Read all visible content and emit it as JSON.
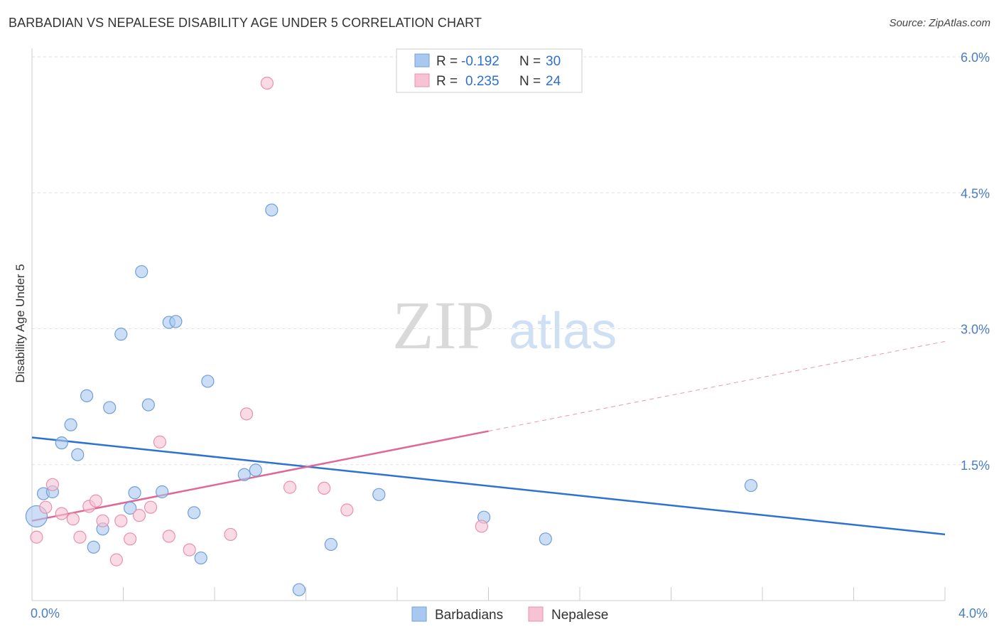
{
  "chart_data": {
    "type": "scatter",
    "title": "BARBADIAN VS NEPALESE DISABILITY AGE UNDER 5 CORRELATION CHART",
    "source": "Source: ZipAtlas.com",
    "xlabel": "",
    "ylabel": "Disability Age Under 5",
    "xlim": [
      0,
      4.0
    ],
    "ylim": [
      0,
      6.0
    ],
    "x_tick_labels": [
      "0.0%",
      "4.0%"
    ],
    "y_ticks": [
      1.5,
      3.0,
      4.5,
      6.0
    ],
    "y_tick_labels": [
      "1.5%",
      "3.0%",
      "4.5%",
      "6.0%"
    ],
    "grid": true,
    "watermark": {
      "zip": "ZIP",
      "atlas": "atlas"
    },
    "legend_stats": [
      {
        "r_label": "R =",
        "r_value": "-0.192",
        "n_label": "N =",
        "n_value": "30"
      },
      {
        "r_label": "R =",
        "r_value": "0.235",
        "n_label": "N =",
        "n_value": "24"
      }
    ],
    "series": [
      {
        "name": "Barbadians",
        "color": "#a9c8ef",
        "stroke": "#6f9fdb",
        "line_color": "#2d72d2",
        "trend": {
          "x0": 0.0,
          "y0": 1.8,
          "x1": 4.0,
          "y1": 0.73,
          "dashed_from": null
        },
        "points": [
          {
            "x": 0.02,
            "y": 0.93,
            "big": true
          },
          {
            "x": 0.05,
            "y": 1.18
          },
          {
            "x": 0.09,
            "y": 1.2
          },
          {
            "x": 0.13,
            "y": 1.74
          },
          {
            "x": 0.17,
            "y": 1.94
          },
          {
            "x": 0.2,
            "y": 1.61
          },
          {
            "x": 0.24,
            "y": 2.26
          },
          {
            "x": 0.27,
            "y": 0.59
          },
          {
            "x": 0.31,
            "y": 0.79
          },
          {
            "x": 0.34,
            "y": 2.13
          },
          {
            "x": 0.39,
            "y": 2.94
          },
          {
            "x": 0.43,
            "y": 1.02
          },
          {
            "x": 0.45,
            "y": 1.19
          },
          {
            "x": 0.48,
            "y": 3.63
          },
          {
            "x": 0.51,
            "y": 2.16
          },
          {
            "x": 0.57,
            "y": 1.2
          },
          {
            "x": 0.6,
            "y": 3.07
          },
          {
            "x": 0.63,
            "y": 3.08
          },
          {
            "x": 0.71,
            "y": 0.97
          },
          {
            "x": 0.74,
            "y": 0.47
          },
          {
            "x": 0.77,
            "y": 2.42
          },
          {
            "x": 0.93,
            "y": 1.39
          },
          {
            "x": 0.98,
            "y": 1.44
          },
          {
            "x": 1.05,
            "y": 4.31
          },
          {
            "x": 1.17,
            "y": 0.12
          },
          {
            "x": 1.31,
            "y": 0.62
          },
          {
            "x": 1.52,
            "y": 1.17
          },
          {
            "x": 1.98,
            "y": 0.92
          },
          {
            "x": 2.25,
            "y": 0.68
          },
          {
            "x": 3.15,
            "y": 1.27
          }
        ]
      },
      {
        "name": "Nepalese",
        "color": "#f7c3d4",
        "stroke": "#e890ad",
        "line_color": "#e06796",
        "trend": {
          "x0": 0.0,
          "y0": 0.88,
          "x1": 4.0,
          "y1": 2.86,
          "dashed_from": 2.0
        },
        "points": [
          {
            "x": 0.02,
            "y": 0.7
          },
          {
            "x": 0.06,
            "y": 1.03
          },
          {
            "x": 0.09,
            "y": 1.28
          },
          {
            "x": 0.13,
            "y": 0.96
          },
          {
            "x": 0.18,
            "y": 0.9
          },
          {
            "x": 0.21,
            "y": 0.7
          },
          {
            "x": 0.25,
            "y": 1.04
          },
          {
            "x": 0.28,
            "y": 1.1
          },
          {
            "x": 0.31,
            "y": 0.88
          },
          {
            "x": 0.37,
            "y": 0.45
          },
          {
            "x": 0.39,
            "y": 0.88
          },
          {
            "x": 0.43,
            "y": 0.68
          },
          {
            "x": 0.47,
            "y": 0.94
          },
          {
            "x": 0.52,
            "y": 1.03
          },
          {
            "x": 0.56,
            "y": 1.75
          },
          {
            "x": 0.6,
            "y": 0.71
          },
          {
            "x": 0.69,
            "y": 0.56
          },
          {
            "x": 0.87,
            "y": 0.73
          },
          {
            "x": 0.94,
            "y": 2.06
          },
          {
            "x": 1.03,
            "y": 5.71
          },
          {
            "x": 1.13,
            "y": 1.25
          },
          {
            "x": 1.28,
            "y": 1.24
          },
          {
            "x": 1.38,
            "y": 1.0
          },
          {
            "x": 1.97,
            "y": 0.82
          }
        ]
      }
    ]
  }
}
